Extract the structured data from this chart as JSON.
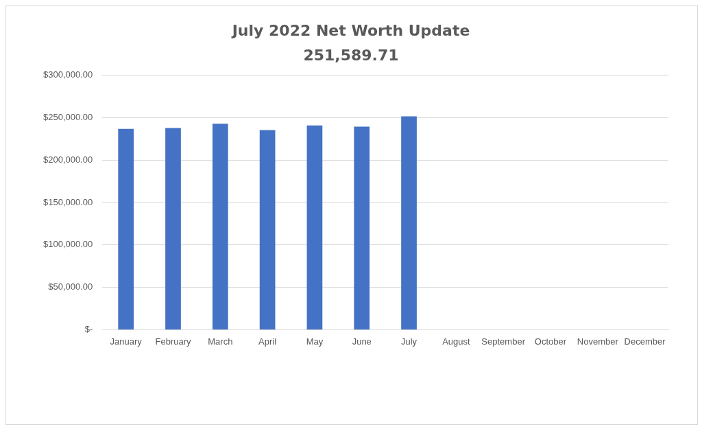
{
  "chart_data": {
    "type": "bar",
    "title": "July 2022 Net Worth Update",
    "subtitle": "251,589.71",
    "categories": [
      "January",
      "February",
      "March",
      "April",
      "May",
      "June",
      "July",
      "August",
      "September",
      "October",
      "November",
      "December"
    ],
    "values": [
      237000,
      238000,
      243000,
      235500,
      241000,
      239500,
      251589.71,
      null,
      null,
      null,
      null,
      null
    ],
    "color": "#4472c4",
    "ylim": [
      0,
      300000
    ],
    "yticks": [
      {
        "value": 0,
        "label": "$-"
      },
      {
        "value": 50000,
        "label": "$50,000.00"
      },
      {
        "value": 100000,
        "label": "$100,000.00"
      },
      {
        "value": 150000,
        "label": "$150,000.00"
      },
      {
        "value": 200000,
        "label": "$200,000.00"
      },
      {
        "value": 250000,
        "label": "$250,000.00"
      },
      {
        "value": 300000,
        "label": "$300,000.00"
      }
    ],
    "grid": "y",
    "legend": false
  }
}
